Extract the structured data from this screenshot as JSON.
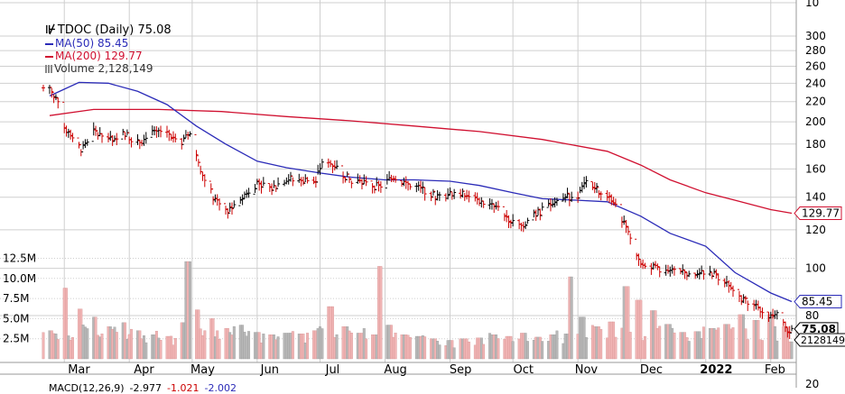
{
  "legend": {
    "title": "TDOC (Daily) 75.08",
    "ma50": "MA(50) 85.45",
    "ma200": "MA(200) 129.77",
    "volume": "Volume 2,128,149"
  },
  "macd_partial": {
    "label": "MACD(12,26,9)",
    "v1": "-2.977",
    "v2": "-1.021",
    "v3": "-2.002"
  },
  "colors": {
    "up": "#000000",
    "down": "#cc0000",
    "ma50": "#2b2bb8",
    "ma200": "#d01030",
    "vol_up": "#b8b8b8",
    "vol_down": "#f0b4b4",
    "grid": "#cfcfcf"
  },
  "chart_data": {
    "type": "line",
    "title": "TDOC (Daily) 75.08",
    "price_scale": "log",
    "price_ticks": [
      300,
      280,
      260,
      240,
      220,
      200,
      180,
      160,
      140,
      120,
      100,
      80
    ],
    "volume_ticks": [
      "12.5M",
      "10.0M",
      "7.5M",
      "5.0M",
      "2.5M"
    ],
    "volume_tick_values": [
      12500000,
      10000000,
      7500000,
      5000000,
      2500000
    ],
    "x_labels": [
      "Mar",
      "Apr",
      "May",
      "Jun",
      "Jul",
      "Aug",
      "Sep",
      "Oct",
      "Nov",
      "Dec",
      "2022",
      "Feb"
    ],
    "price_tags": [
      {
        "label": "129.77",
        "value": 129.77,
        "color": "#d01030"
      },
      {
        "label": "85.45",
        "value": 85.45,
        "color": "#2b2bb8"
      },
      {
        "label": "75.08",
        "value": 75.08,
        "color": "#000000",
        "bold": true
      }
    ],
    "volume_tag": {
      "label": "2128149",
      "value": 2128149
    },
    "partial_top_tick": "10",
    "partial_bottom_tick": "20",
    "close_path": {
      "x": [
        "2021-02-22",
        "2021-02-25",
        "2021-03-01",
        "2021-03-04",
        "2021-03-09",
        "2021-03-15",
        "2021-03-22",
        "2021-03-29",
        "2021-04-05",
        "2021-04-12",
        "2021-04-19",
        "2021-04-26",
        "2021-04-30",
        "2021-05-05",
        "2021-05-12",
        "2021-05-18",
        "2021-05-25",
        "2021-06-01",
        "2021-06-08",
        "2021-06-15",
        "2021-06-22",
        "2021-06-29",
        "2021-07-02",
        "2021-07-08",
        "2021-07-15",
        "2021-07-22",
        "2021-07-29",
        "2021-08-05",
        "2021-08-12",
        "2021-08-19",
        "2021-08-26",
        "2021-09-02",
        "2021-09-09",
        "2021-09-16",
        "2021-09-23",
        "2021-09-30",
        "2021-10-06",
        "2021-10-13",
        "2021-10-20",
        "2021-10-27",
        "2021-11-01",
        "2021-11-05",
        "2021-11-12",
        "2021-11-18",
        "2021-11-24",
        "2021-11-30",
        "2021-12-07",
        "2021-12-14",
        "2021-12-21",
        "2021-12-28",
        "2022-01-04",
        "2022-01-11",
        "2022-01-18",
        "2022-01-25",
        "2022-02-01",
        "2022-02-04",
        "2022-02-09"
      ],
      "close": [
        235,
        224,
        195,
        188,
        176,
        191,
        183,
        191,
        181,
        189,
        191,
        181,
        190,
        160,
        137,
        132,
        140,
        150,
        146,
        153,
        152,
        151,
        166,
        163,
        152,
        150,
        147,
        154,
        149,
        145,
        140,
        143,
        141,
        137,
        133,
        126,
        123,
        130,
        136,
        140,
        141,
        150,
        143,
        136,
        121,
        104,
        100,
        98,
        99,
        97,
        98,
        93,
        87,
        83,
        80,
        82,
        75.08
      ]
    },
    "ma50": {
      "x": [
        "2021-02-22",
        "2021-03-08",
        "2021-03-22",
        "2021-04-05",
        "2021-04-19",
        "2021-05-03",
        "2021-05-17",
        "2021-06-01",
        "2021-06-15",
        "2021-07-01",
        "2021-07-15",
        "2021-08-01",
        "2021-08-15",
        "2021-09-01",
        "2021-09-15",
        "2021-10-01",
        "2021-10-15",
        "2021-11-01",
        "2021-11-15",
        "2021-12-01",
        "2021-12-15",
        "2022-01-01",
        "2022-01-15",
        "2022-02-01",
        "2022-02-11"
      ],
      "values": [
        226,
        241,
        240,
        231,
        217,
        196,
        180,
        166,
        161,
        157,
        154,
        152,
        152,
        151,
        148,
        143,
        139,
        138,
        137,
        128,
        118,
        111,
        98,
        89,
        85.45
      ]
    },
    "ma200": {
      "x": [
        "2021-02-22",
        "2021-03-15",
        "2021-04-15",
        "2021-05-15",
        "2021-06-15",
        "2021-07-15",
        "2021-08-15",
        "2021-09-15",
        "2021-10-15",
        "2021-11-15",
        "2021-12-01",
        "2021-12-15",
        "2022-01-01",
        "2022-01-15",
        "2022-02-01",
        "2022-02-11"
      ],
      "values": [
        206,
        212,
        212,
        210,
        205,
        201,
        196,
        191,
        184,
        174,
        163,
        152,
        143,
        138,
        132,
        129.77
      ]
    },
    "volume": {
      "x": [
        "2021-02-22",
        "2021-03-01",
        "2021-03-08",
        "2021-03-15",
        "2021-03-22",
        "2021-03-29",
        "2021-04-05",
        "2021-04-12",
        "2021-04-19",
        "2021-04-26",
        "2021-04-29",
        "2021-05-03",
        "2021-05-10",
        "2021-05-17",
        "2021-05-24",
        "2021-06-01",
        "2021-06-08",
        "2021-06-15",
        "2021-06-22",
        "2021-06-28",
        "2021-07-06",
        "2021-07-13",
        "2021-07-20",
        "2021-07-27",
        "2021-07-29",
        "2021-08-03",
        "2021-08-10",
        "2021-08-17",
        "2021-08-24",
        "2021-09-01",
        "2021-09-08",
        "2021-09-15",
        "2021-09-22",
        "2021-09-29",
        "2021-10-06",
        "2021-10-13",
        "2021-10-20",
        "2021-10-27",
        "2021-10-28",
        "2021-11-03",
        "2021-11-10",
        "2021-11-17",
        "2021-11-24",
        "2021-11-30",
        "2021-12-07",
        "2021-12-14",
        "2021-12-21",
        "2021-12-28",
        "2022-01-04",
        "2022-01-11",
        "2022-01-18",
        "2022-01-25",
        "2022-02-01",
        "2022-02-08",
        "2022-02-11"
      ],
      "values": [
        3500000,
        8800000,
        6200000,
        5200000,
        4000000,
        4500000,
        3500000,
        3000000,
        2800000,
        4500000,
        12100000,
        6100000,
        5000000,
        3800000,
        4200000,
        3300000,
        3000000,
        3200000,
        3100000,
        3500000,
        6500000,
        4000000,
        3200000,
        3000000,
        11500000,
        4200000,
        3000000,
        2800000,
        2500000,
        2300000,
        2500000,
        2600000,
        3000000,
        2800000,
        3200000,
        2700000,
        3000000,
        3100000,
        10200000,
        5200000,
        4000000,
        4600000,
        9000000,
        7300000,
        6000000,
        4300000,
        3300000,
        3400000,
        3800000,
        4300000,
        5500000,
        4800000,
        5500000,
        4000000,
        2128149
      ]
    }
  }
}
